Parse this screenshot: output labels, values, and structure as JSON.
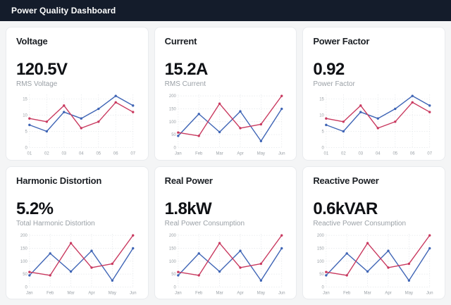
{
  "header": {
    "title": "Power Quality Dashboard"
  },
  "theme": {
    "header_bg": "#141c2b",
    "header_text": "#ffffff",
    "page_bg": "#f4f5f6",
    "card_bg": "#ffffff",
    "card_border": "#e9ebee",
    "title_color": "#1b1f24",
    "value_color": "#0f1115",
    "subtitle_color": "#9aa0a6",
    "grid_color": "#e4e7ea",
    "tick_color": "#9aa0a6",
    "series_colors": [
      "#3e64b5",
      "#c9395f"
    ]
  },
  "cards": [
    {
      "id": "voltage",
      "title": "Voltage",
      "value": "120.5V",
      "subtitle": "RMS Voltage",
      "chart_data": {
        "type": "line",
        "categories": [
          "01",
          "02",
          "03",
          "04",
          "05",
          "06",
          "07"
        ],
        "series": [
          {
            "name": "series-blue",
            "color": "#3e64b5",
            "values": [
              7,
              5,
              11,
              9,
              12,
              16,
              13
            ]
          },
          {
            "name": "series-red",
            "color": "#c9395f",
            "values": [
              9,
              8,
              13,
              6,
              8,
              14,
              11
            ]
          }
        ],
        "ylim": [
          0,
          15
        ],
        "yticks": [
          0,
          5,
          10,
          15
        ],
        "grid": true,
        "legend": false
      }
    },
    {
      "id": "current",
      "title": "Current",
      "value": "15.2A",
      "subtitle": "RMS Current",
      "chart_data": {
        "type": "line",
        "categories": [
          "Jan",
          "Feb",
          "Mar",
          "Apr",
          "May",
          "Jun"
        ],
        "series": [
          {
            "name": "series-blue",
            "color": "#3e64b5",
            "values": [
              45,
              130,
              60,
              140,
              25,
              150
            ]
          },
          {
            "name": "series-red",
            "color": "#c9395f",
            "values": [
              58,
              45,
              170,
              75,
              90,
              200
            ]
          }
        ],
        "ylim": [
          0,
          200
        ],
        "yticks": [
          0,
          50,
          100,
          150,
          200
        ],
        "grid": true,
        "legend": false
      }
    },
    {
      "id": "power-factor",
      "title": "Power Factor",
      "value": "0.92",
      "subtitle": "Power Factor",
      "chart_data": {
        "type": "line",
        "categories": [
          "01",
          "02",
          "03",
          "04",
          "05",
          "06",
          "07"
        ],
        "series": [
          {
            "name": "series-blue",
            "color": "#3e64b5",
            "values": [
              7,
              5,
              11,
              9,
              12,
              16,
              13
            ]
          },
          {
            "name": "series-red",
            "color": "#c9395f",
            "values": [
              9,
              8,
              13,
              6,
              8,
              14,
              11
            ]
          }
        ],
        "ylim": [
          0,
          15
        ],
        "yticks": [
          0,
          5,
          10,
          15
        ],
        "grid": true,
        "legend": false
      }
    },
    {
      "id": "harmonic-distortion",
      "title": "Harmonic Distortion",
      "value": "5.2%",
      "subtitle": "Total Harmonic Distortion",
      "chart_data": {
        "type": "line",
        "categories": [
          "Jan",
          "Feb",
          "Mar",
          "Apr",
          "May",
          "Jun"
        ],
        "series": [
          {
            "name": "series-blue",
            "color": "#3e64b5",
            "values": [
              45,
              130,
              60,
              140,
              25,
              150
            ]
          },
          {
            "name": "series-red",
            "color": "#c9395f",
            "values": [
              58,
              45,
              170,
              75,
              90,
              200
            ]
          }
        ],
        "ylim": [
          0,
          200
        ],
        "yticks": [
          0,
          50,
          100,
          150,
          200
        ],
        "grid": true,
        "legend": false
      }
    },
    {
      "id": "real-power",
      "title": "Real Power",
      "value": "1.8kW",
      "subtitle": "Real Power Consumption",
      "chart_data": {
        "type": "line",
        "categories": [
          "Jan",
          "Feb",
          "Mar",
          "Apr",
          "May",
          "Jun"
        ],
        "series": [
          {
            "name": "series-blue",
            "color": "#3e64b5",
            "values": [
              45,
              130,
              60,
              140,
              25,
              150
            ]
          },
          {
            "name": "series-red",
            "color": "#c9395f",
            "values": [
              58,
              45,
              170,
              75,
              90,
              200
            ]
          }
        ],
        "ylim": [
          0,
          200
        ],
        "yticks": [
          0,
          50,
          100,
          150,
          200
        ],
        "grid": true,
        "legend": false
      }
    },
    {
      "id": "reactive-power",
      "title": "Reactive Power",
      "value": "0.6kVAR",
      "subtitle": "Reactive Power Consumption",
      "chart_data": {
        "type": "line",
        "categories": [
          "Jan",
          "Feb",
          "Mar",
          "Apr",
          "May",
          "Jun"
        ],
        "series": [
          {
            "name": "series-blue",
            "color": "#3e64b5",
            "values": [
              45,
              130,
              60,
              140,
              25,
              150
            ]
          },
          {
            "name": "series-red",
            "color": "#c9395f",
            "values": [
              58,
              45,
              170,
              75,
              90,
              200
            ]
          }
        ],
        "ylim": [
          0,
          200
        ],
        "yticks": [
          0,
          50,
          100,
          150,
          200
        ],
        "grid": true,
        "legend": false
      }
    }
  ]
}
